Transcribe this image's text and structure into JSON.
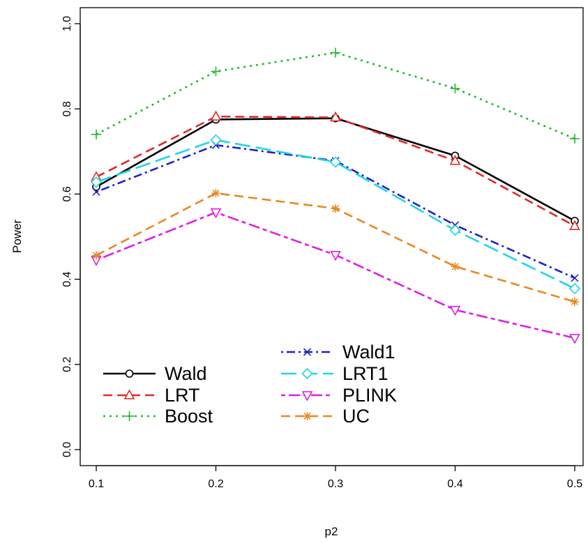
{
  "chart_data": {
    "type": "line",
    "title": "",
    "xlabel": "p2",
    "ylabel": "Power",
    "x": [
      0.1,
      0.2,
      0.3,
      0.4,
      0.5
    ],
    "x_tick_labels": [
      "0.1",
      "0.2",
      "0.3",
      "0.4",
      "0.5"
    ],
    "y_ticks": [
      0.0,
      0.2,
      0.4,
      0.6,
      0.8,
      1.0
    ],
    "y_tick_labels": [
      "0.0",
      "0.2",
      "0.4",
      "0.6",
      "0.8",
      "1.0"
    ],
    "xlim": [
      0.1,
      0.5
    ],
    "ylim": [
      0.0,
      1.0
    ],
    "grid": false,
    "legend_position": "bottom-left",
    "series": [
      {
        "name": "Wald",
        "values": [
          0.617,
          0.775,
          0.778,
          0.69,
          0.537
        ],
        "color": "#000000",
        "dash": "solid",
        "marker": "circle"
      },
      {
        "name": "LRT",
        "values": [
          0.64,
          0.782,
          0.78,
          0.678,
          0.525
        ],
        "color": "#df2a2a",
        "dash": "dashed",
        "marker": "triangle-up"
      },
      {
        "name": "Boost",
        "values": [
          0.74,
          0.888,
          0.932,
          0.848,
          0.73
        ],
        "color": "#22b830",
        "dash": "dotted",
        "marker": "plus"
      },
      {
        "name": "Wald1",
        "values": [
          0.605,
          0.715,
          0.678,
          0.527,
          0.403
        ],
        "color": "#2020c8",
        "dash": "dotdash",
        "marker": "cross"
      },
      {
        "name": "LRT1",
        "values": [
          0.628,
          0.727,
          0.675,
          0.515,
          0.378
        ],
        "color": "#1ed6e6",
        "dash": "longdash",
        "marker": "diamond"
      },
      {
        "name": "PLINK",
        "values": [
          0.445,
          0.557,
          0.457,
          0.328,
          0.262
        ],
        "color": "#e01ee0",
        "dash": "twodash",
        "marker": "triangle-down"
      },
      {
        "name": "UC",
        "values": [
          0.456,
          0.602,
          0.566,
          0.43,
          0.347
        ],
        "color": "#e88820",
        "dash": "dashed",
        "marker": "asterisk"
      }
    ]
  }
}
